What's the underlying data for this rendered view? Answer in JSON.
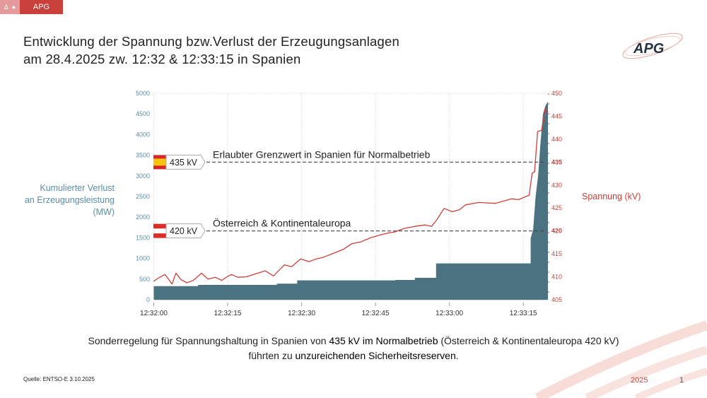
{
  "tab": {
    "icons": [
      "warning-icon",
      "dot-icon"
    ],
    "label": "APG"
  },
  "header": {
    "title_line1": "Entwicklung der Spannung bzw.Verlust der Erzeugungsanlagen",
    "title_line2": "am 28.4.2025 zw. 12:32 & 12:33:15 in Spanien",
    "logo_text": "APG"
  },
  "chart_data": {
    "type": "line+area",
    "x_unit": "seconds after 12:32:00",
    "xticks": [
      "12:32:00",
      "12:32:15",
      "12:32:30",
      "12:32:45",
      "12:33:00",
      "12:33:15"
    ],
    "xlim": [
      0,
      80
    ],
    "left_axis": {
      "label_lines": [
        "Kumulierter Verlust",
        "an Erzeugungsleistung",
        "(MW)"
      ],
      "ylim": [
        0,
        5000
      ],
      "ticks": [
        0,
        500,
        1000,
        1500,
        2000,
        2500,
        3000,
        3500,
        4000,
        4500,
        5000
      ],
      "color": "#5b8ea3"
    },
    "right_axis": {
      "label": "Spannung  (kV)",
      "ylim": [
        405,
        450
      ],
      "ticks": [
        405,
        410,
        415,
        420,
        425,
        430,
        435,
        440,
        445,
        450
      ],
      "bold_ticks": [
        420,
        435
      ],
      "color": "#c9403b"
    },
    "series": [
      {
        "kind": "step-area",
        "axis": "left",
        "color": "#4b7280",
        "x": [
          0,
          9,
          9,
          25,
          25,
          29.1,
          29.1,
          49,
          49,
          53,
          53,
          57.3,
          57.3,
          76.5,
          76.5,
          77,
          77.5,
          78,
          78.5,
          79,
          79.5,
          80
        ],
        "y": [
          330,
          330,
          360,
          360,
          390,
          390,
          470,
          470,
          480,
          480,
          530,
          530,
          880,
          880,
          1490,
          1700,
          2500,
          3000,
          3800,
          4500,
          4700,
          4800
        ]
      },
      {
        "kind": "line",
        "axis": "right",
        "color": "#c9403b",
        "x": [
          0,
          1,
          2.3,
          3.7,
          4.5,
          5.5,
          6.7,
          8,
          9.7,
          11,
          12.5,
          13.8,
          15,
          15.8,
          17,
          18.8,
          20.5,
          22.6,
          24.3,
          25.5,
          26.5,
          28,
          29.8,
          31.5,
          33,
          34.5,
          36.4,
          38.5,
          40.2,
          42,
          44,
          45.5,
          47.4,
          49,
          50.7,
          53,
          55.1,
          56.4,
          57.5,
          58.9,
          60.6,
          62,
          63.3,
          66,
          69.3,
          72.6,
          74,
          76.2,
          76.8,
          77.3,
          77.9,
          78.7,
          79.5,
          80
        ],
        "y": [
          409.0,
          409.8,
          410.5,
          408.4,
          410.8,
          409.4,
          408.7,
          409.2,
          410.8,
          409.5,
          409.9,
          409.2,
          410.1,
          410.5,
          409.9,
          410,
          410.6,
          411.3,
          410.2,
          411.5,
          412.6,
          412.2,
          413.9,
          413.3,
          413.9,
          414.3,
          415.1,
          416,
          417.2,
          417.6,
          418.5,
          419,
          419.5,
          419.8,
          420.5,
          421,
          421.3,
          421,
          422.5,
          424.9,
          424.2,
          424.6,
          425.7,
          426.2,
          426,
          427,
          426.8,
          427.8,
          432.6,
          432.9,
          441.7,
          441.9,
          446.8,
          445.8
        ]
      }
    ],
    "reference_lines": [
      {
        "value": 435,
        "axis": "right",
        "tag": "435 kV",
        "flag": "spain-flag",
        "text": "Erlaubter Grenzwert in Spanien für Normalbetrieb"
      },
      {
        "value": 420,
        "axis": "right",
        "tag": "420 kV",
        "flag": "austria-flag",
        "text": "Österreich & Kontinentaleuropa"
      }
    ],
    "grid": true
  },
  "caption": {
    "line1_a": "Sonderregelung für Spannungshaltung in Spanien von ",
    "line1_b": "435 kV im Normalbetrieb",
    "line1_c": " (Österreich & Kontinentaleuropa 420 kV)",
    "line2_a": "führten zu ",
    "line2_b": "unzureichenden Sicherheitsreserven",
    "line2_c": "."
  },
  "footer": {
    "source": "Quelle: ENTSO-E 3.10.2025",
    "year": "2025",
    "page": "1"
  }
}
